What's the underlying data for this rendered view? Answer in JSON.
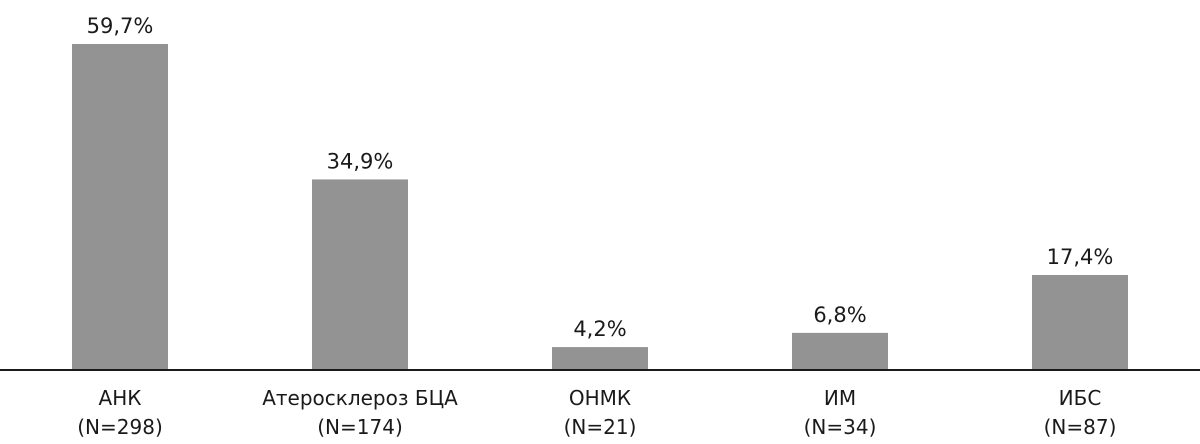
{
  "chart_data": {
    "type": "bar",
    "title": "",
    "xlabel": "",
    "ylabel": "",
    "ylim": [
      0,
      59.7
    ],
    "grid": false,
    "colors": {
      "bar": "#939393",
      "axis": "#1a1a1a",
      "text": "#1a1a1a"
    },
    "categories": [
      {
        "name": "АНК",
        "n": "(N=298)"
      },
      {
        "name": "Атеросклероз БЦА",
        "n": "(N=174)"
      },
      {
        "name": "ОНМК",
        "n": "(N=21)"
      },
      {
        "name": "ИМ",
        "n": "(N=34)"
      },
      {
        "name": "ИБС",
        "n": "(N=87)"
      }
    ],
    "values": [
      59.7,
      34.9,
      4.2,
      6.8,
      17.4
    ],
    "value_labels": [
      "59,7%",
      "34,9%",
      "4,2%",
      "6,8%",
      "17,4%"
    ]
  }
}
